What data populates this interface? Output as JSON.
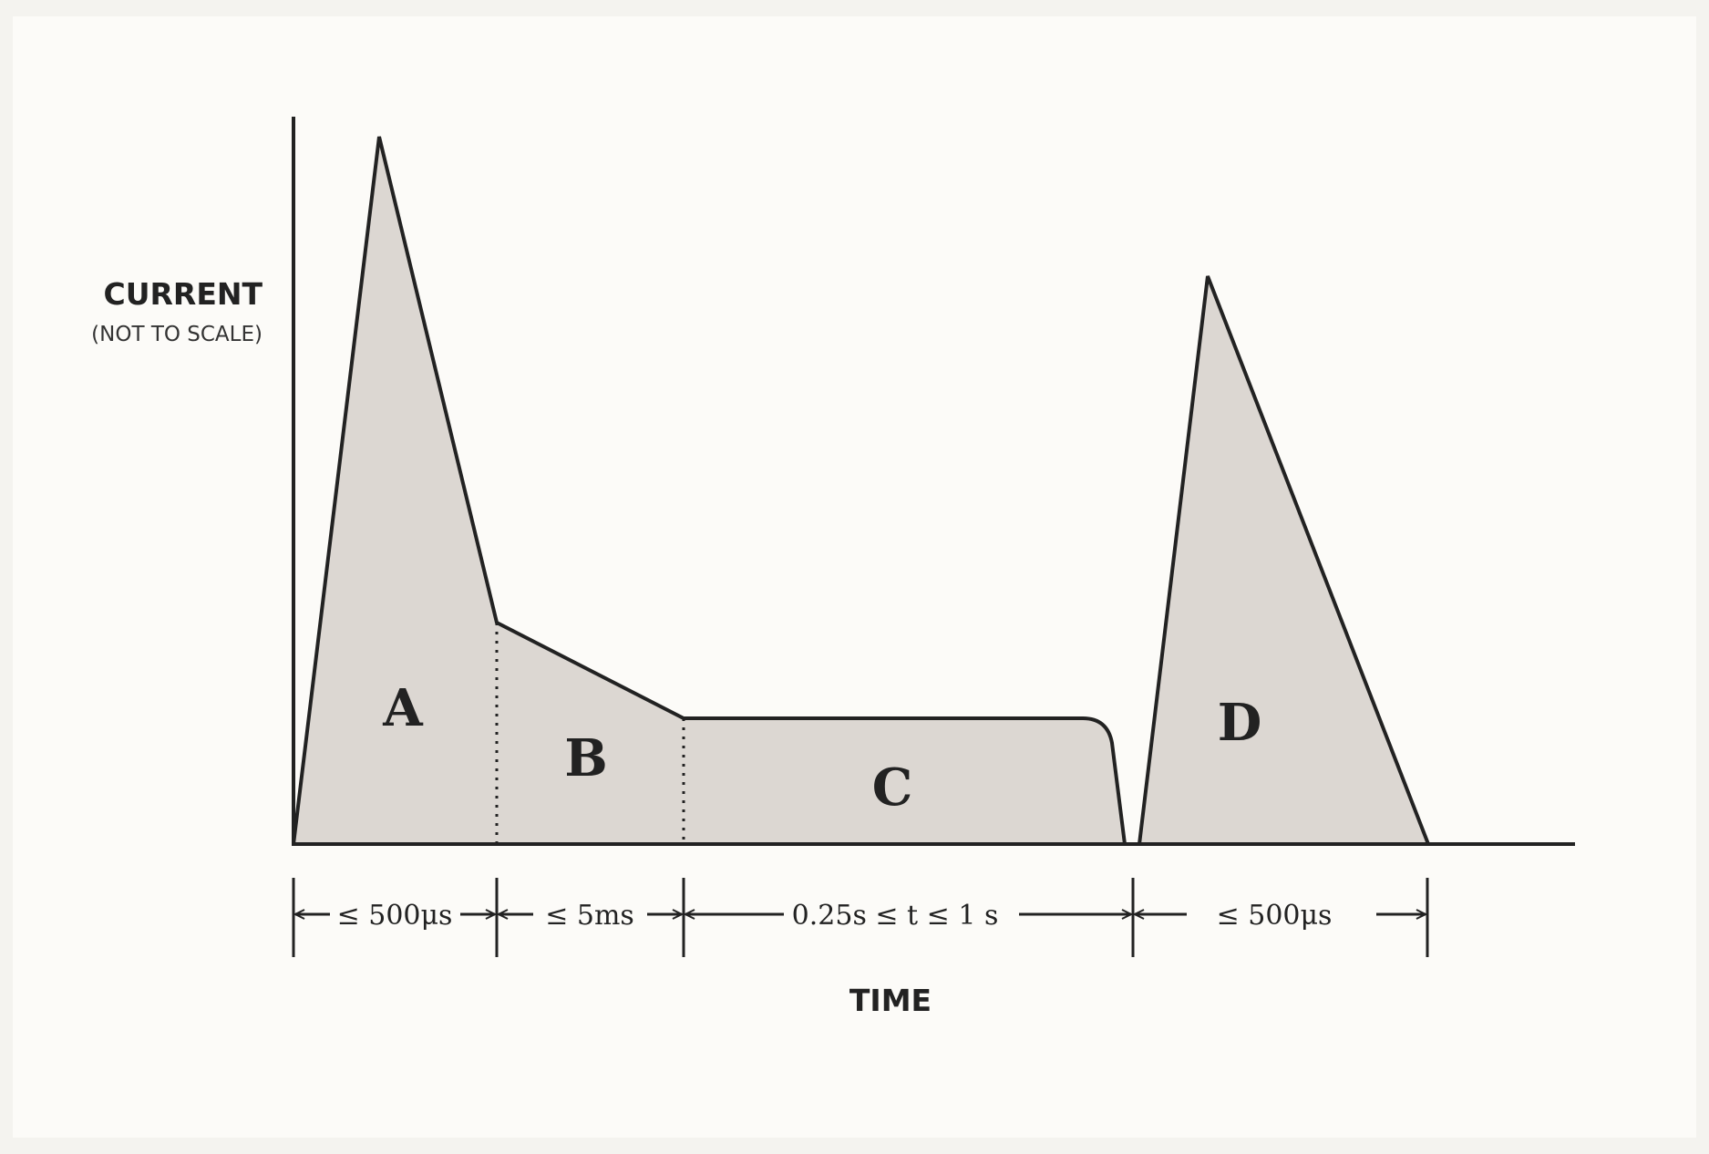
{
  "colors": {
    "fill": "#dcd7d2",
    "stroke": "#222222",
    "background": "#fcfbf8"
  },
  "axes": {
    "y_title": "CURRENT",
    "y_note": "(NOT TO SCALE)",
    "x_title": "TIME"
  },
  "regions": [
    {
      "id": "A",
      "label": "A"
    },
    {
      "id": "B",
      "label": "B"
    },
    {
      "id": "C",
      "label": "C"
    },
    {
      "id": "D",
      "label": "D"
    }
  ],
  "durations": [
    {
      "id": "A",
      "label": "≤ 500μs"
    },
    {
      "id": "B",
      "label": "≤ 5ms"
    },
    {
      "id": "C",
      "label": "0.25s ≤ t ≤ 1 s"
    },
    {
      "id": "D",
      "label": "≤ 500μs"
    }
  ]
}
